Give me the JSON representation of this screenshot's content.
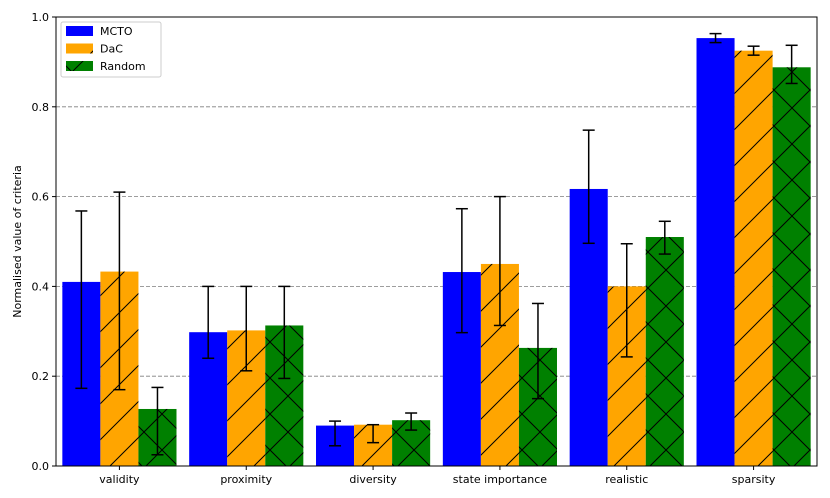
{
  "chart_data": {
    "type": "bar",
    "title": "",
    "xlabel": "",
    "ylabel": "Normalised value of criteria",
    "ylim": [
      0,
      1.0
    ],
    "yticks": [
      "0.0",
      "0.2",
      "0.4",
      "0.6",
      "0.8",
      "1.0"
    ],
    "grid": "y, dashed",
    "legend_position": "top-left",
    "categories": [
      "validity",
      "proximity",
      "diversity",
      "state importance",
      "realistic",
      "sparsity"
    ],
    "series": [
      {
        "name": "MCTO",
        "color": "#0000ff",
        "hatch": "none",
        "values": [
          0.41,
          0.298,
          0.09,
          0.432,
          0.617,
          0.953
        ],
        "error_low": [
          0.173,
          0.24,
          0.045,
          0.297,
          0.496,
          0.943
        ],
        "error_high": [
          0.568,
          0.4,
          0.1,
          0.573,
          0.748,
          0.963
        ]
      },
      {
        "name": "DaC",
        "color": "#ffa500",
        "hatch": "diagonal",
        "values": [
          0.433,
          0.302,
          0.092,
          0.45,
          0.4,
          0.925
        ],
        "error_low": [
          0.17,
          0.212,
          0.052,
          0.313,
          0.243,
          0.915
        ],
        "error_high": [
          0.61,
          0.4,
          0.092,
          0.6,
          0.495,
          0.935
        ]
      },
      {
        "name": "Random",
        "color": "#008000",
        "hatch": "cross",
        "values": [
          0.127,
          0.313,
          0.102,
          0.263,
          0.51,
          0.888
        ],
        "error_low": [
          0.025,
          0.195,
          0.08,
          0.15,
          0.472,
          0.852
        ],
        "error_high": [
          0.175,
          0.4,
          0.118,
          0.362,
          0.545,
          0.937
        ]
      }
    ]
  }
}
